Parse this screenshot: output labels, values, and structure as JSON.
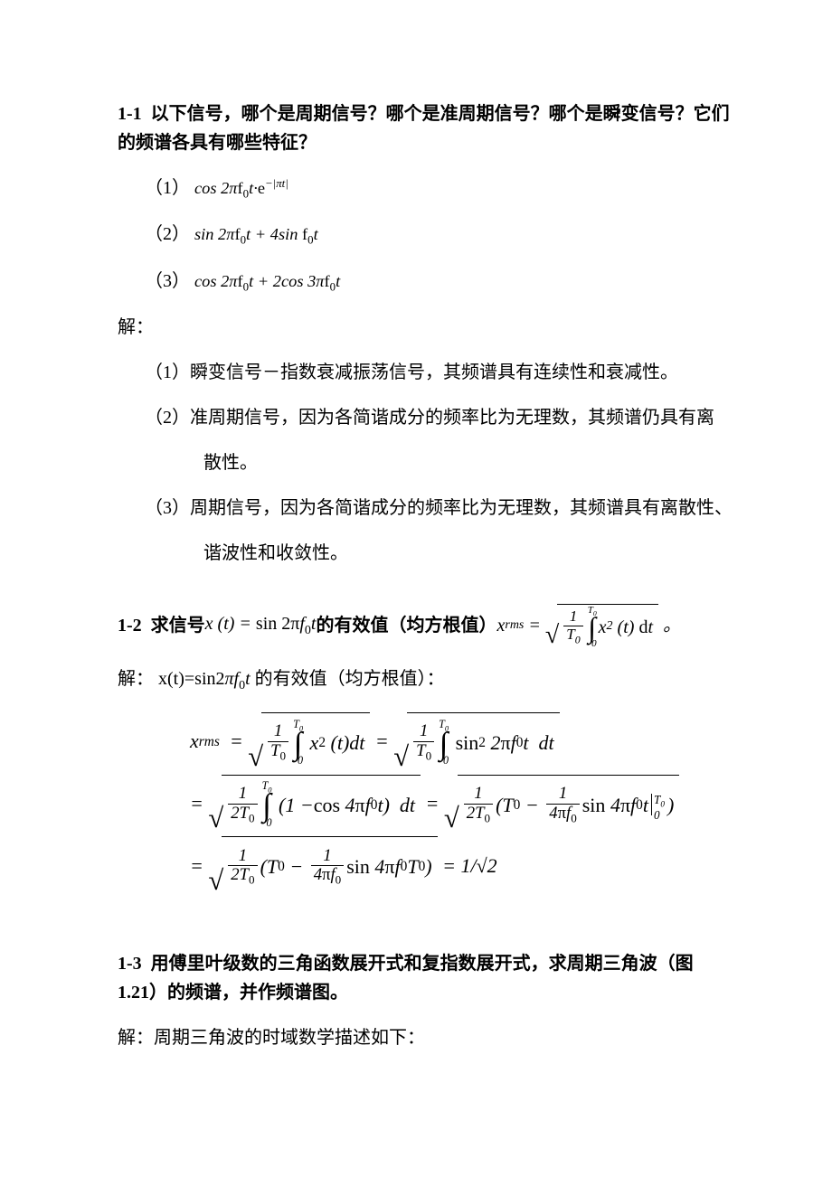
{
  "colors": {
    "background": "#ffffff",
    "text": "#000000",
    "rule": "#000000"
  },
  "typography": {
    "body_family": "SimSun/宋体",
    "math_family": "Times New Roman",
    "body_size_pt": 15,
    "heading_weight": "bold"
  },
  "q1": {
    "number": "1-1",
    "title": "以下信号，哪个是周期信号？哪个是准周期信号？哪个是瞬变信号？它们的频谱各具有哪些特征？",
    "items": {
      "i1": {
        "label": "（1）",
        "expr_html": "cos 2π<span class='math'>f</span><span class='sub'>0</span><span class='math'>t</span>·e<span class='sup'>−|π<span class='math'>t</span>|</span>"
      },
      "i2": {
        "label": "（2）",
        "expr_html": "sin 2π<span class='math'>f</span><span class='sub'>0</span><span class='math'>t</span> + 4sin <span class='math'>f</span><span class='sub'>0</span><span class='math'>t</span>"
      },
      "i3": {
        "label": "（3）",
        "expr_html": "cos 2π<span class='math'>f</span><span class='sub'>0</span><span class='math'>t</span> + 2cos 3π<span class='math'>f</span><span class='sub'>0</span><span class='math'>t</span>"
      }
    },
    "answer_label": "解：",
    "answers": {
      "a1_label": "（1）",
      "a1_text": "瞬变信号－指数衰减振荡信号，其频谱具有连续性和衰减性。",
      "a2_label": "（2）",
      "a2_text_l1": "准周期信号，因为各简谐成分的频率比为无理数，其频谱仍具有离",
      "a2_text_l2": "散性。",
      "a3_label": "（3）",
      "a3_text_l1": "周期信号，因为各简谐成分的频率比为无理数，其频谱具有离散性、",
      "a3_text_l2": "谐波性和收敛性。"
    }
  },
  "q2": {
    "number": "1-2",
    "title_pre": "求信号 ",
    "title_xeq": "x (t) = sin 2πf₀t",
    "title_mid": " 的有效值（均方根值）",
    "rms_symbol": "x_rms",
    "answer_label": "解：",
    "answer_lead": "x(t)=sin2πf₀t 的有效值（均方根值）：",
    "derivation": {
      "final": "= 1/√2"
    }
  },
  "q3": {
    "number": "1-3",
    "title": "用傅里叶级数的三角函数展开式和复指数展开式，求周期三角波（图1.21）的频谱，并作频谱图。",
    "answer_label": "解：",
    "answer_lead": "周期三角波的时域数学描述如下："
  }
}
